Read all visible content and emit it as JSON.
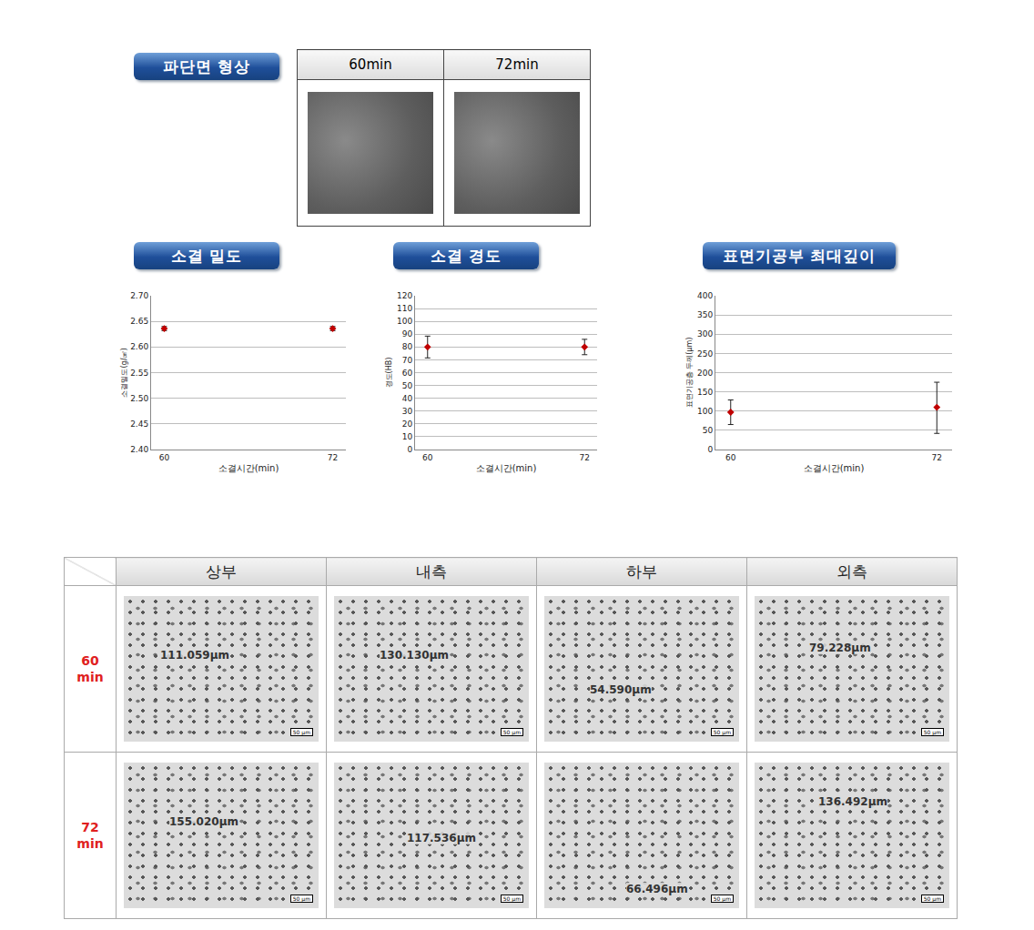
{
  "fracture": {
    "title": "파단면 형상",
    "columns": [
      "60min",
      "72min"
    ]
  },
  "chart_data": [
    {
      "type": "scatter",
      "title": "소결 밀도",
      "categories": [
        "60",
        "72"
      ],
      "values": [
        2.636,
        2.636
      ],
      "error_plus": [
        0.004,
        0.004
      ],
      "error_minus": [
        0.004,
        0.004
      ],
      "x_label": "소결시간(min)",
      "y_label": "소결밀도(g/㎤)",
      "ylim": [
        2.4,
        2.7
      ],
      "yticks": [
        {
          "value": 2.4,
          "label": "2.40"
        },
        {
          "value": 2.45,
          "label": "2.45"
        },
        {
          "value": 2.5,
          "label": "2.50"
        },
        {
          "value": 2.55,
          "label": "2.55"
        },
        {
          "value": 2.6,
          "label": "2.60"
        },
        {
          "value": 2.65,
          "label": "2.65"
        },
        {
          "value": 2.7,
          "label": "2.70"
        }
      ],
      "grid": true,
      "color": "#c00000",
      "marker": "diamond"
    },
    {
      "type": "scatter",
      "title": "소결 경도",
      "categories": [
        "60",
        "72"
      ],
      "values": [
        80,
        80
      ],
      "error_plus": [
        8.5,
        6
      ],
      "error_minus": [
        8.5,
        6
      ],
      "x_label": "소결시간(min)",
      "y_label": "경도(HB)",
      "ylim": [
        0,
        120
      ],
      "yticks": [
        0,
        10,
        20,
        30,
        40,
        50,
        60,
        70,
        80,
        90,
        100,
        110,
        120
      ],
      "grid": true,
      "color": "#c00000",
      "marker": "diamond"
    },
    {
      "type": "scatter",
      "title": "표면기공부 최대깊이",
      "categories": [
        "60",
        "72"
      ],
      "values": [
        97,
        110
      ],
      "error_plus": [
        32,
        65
      ],
      "error_minus": [
        32,
        68
      ],
      "x_label": "소결시간(min)",
      "y_label": "표면기공층 두께(μm)",
      "ylim": [
        0,
        400
      ],
      "yticks": [
        0,
        50,
        100,
        150,
        200,
        250,
        300,
        350,
        400
      ],
      "grid": true,
      "color": "#c00000",
      "marker": "diamond"
    }
  ],
  "micrographs": {
    "columns": [
      "상부",
      "내측",
      "하부",
      "외측"
    ],
    "rows": [
      {
        "label": "60 min",
        "measurements": [
          "111.059μm",
          "130.130μm",
          "54.590μm",
          "79.228μm"
        ]
      },
      {
        "label": "72 min",
        "measurements": [
          "155.020μm",
          "117.536μm",
          "66.496μm",
          "136.492μm"
        ]
      }
    ],
    "scale_bar": "50 μm"
  }
}
